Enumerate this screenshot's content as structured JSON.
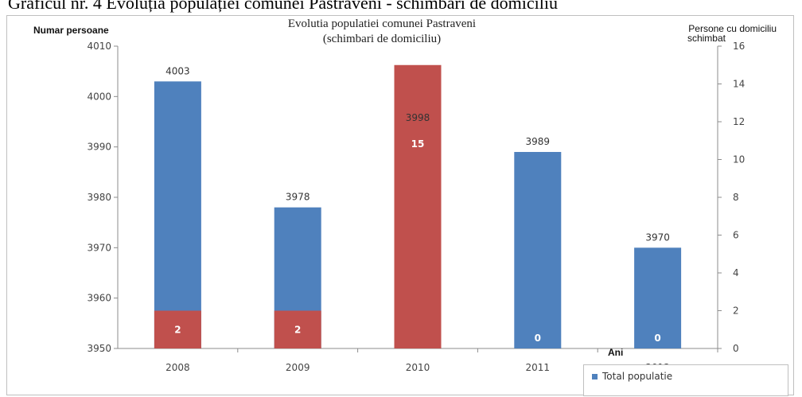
{
  "page": {
    "caption": "Graficul nr. 4 Evoluția populației comunei Pastraveni - schimbari de domiciliu"
  },
  "chart_data": {
    "type": "bar",
    "title_line1": "Evolutia populatiei comunei Pastraveni",
    "title_line2": "(schimbari de domiciliu)",
    "xlabel": "Ani",
    "ylabel": "Numar persoane",
    "y2label_line1": "Persone cu domiciliu",
    "y2label_line2": "schimbat",
    "categories": [
      "2008",
      "2009",
      "2010",
      "2011",
      "2012"
    ],
    "ylim": [
      3950,
      4010
    ],
    "yticks": [
      "3950",
      "3960",
      "3970",
      "3980",
      "3990",
      "4000",
      "4010"
    ],
    "y2lim": [
      0,
      16
    ],
    "y2ticks": [
      "0",
      "2",
      "4",
      "6",
      "8",
      "10",
      "12",
      "14",
      "16"
    ],
    "grid": false,
    "legend_position": "bottom-right",
    "series": [
      {
        "name": "Total populatie",
        "axis": "left",
        "color": "#4F81BD",
        "values": [
          4003,
          3978,
          3998,
          3989,
          3970
        ],
        "labels": [
          "4003",
          "3978",
          "3998",
          "3989",
          "3970"
        ]
      },
      {
        "axis": "right",
        "color": "#C0504D",
        "values": [
          2,
          2,
          15,
          0,
          0
        ],
        "labels": [
          "2",
          "2",
          "15",
          "0",
          "0"
        ]
      }
    ]
  }
}
